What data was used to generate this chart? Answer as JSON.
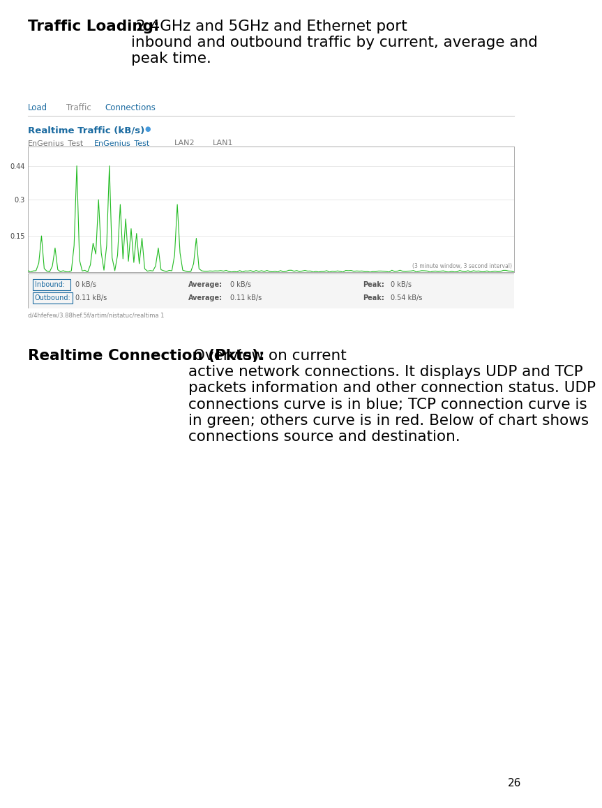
{
  "page_number": "26",
  "background_color": "#ffffff",
  "title_bold": "Traffic Loading:",
  "title_normal": " 2.4GHz and 5GHz and Ethernet port\ninbound and outbound traffic by current, average and\npeak time.",
  "title_fontsize": 15.5,
  "tabs": [
    "Load",
    "Traffic",
    "Connections"
  ],
  "tab_colors": [
    "#1a6aa0",
    "#888888",
    "#1a6aa0"
  ],
  "chart_title": "Realtime Traffic (kB/s)",
  "chart_title_color": "#1a6aa0",
  "chart_subtitle_labels": [
    "EnGenius_Test",
    "EnGenius_Test",
    "LAN2",
    "LAN1"
  ],
  "chart_subtitle_colors": [
    "#777777",
    "#1a6aa0",
    "#777777",
    "#777777"
  ],
  "yticks": [
    0.15,
    0.3,
    0.44
  ],
  "ylim": [
    0,
    0.52
  ],
  "line_color": "#22bb22",
  "inbound_label": "Inbound:",
  "inbound_value": "0 kB/s",
  "outbound_label": "Outbound:",
  "outbound_value": "0.11 kB/s",
  "average_inbound": "0 kB/s",
  "average_outbound": "0.11 kB/s",
  "peak_inbound": "0 kB/s",
  "peak_outbound": "0.54 kB/s",
  "window_note": "(3 minute window, 3 second interval)",
  "url_note": "d/4hfefew/3.88hef.5f/artim/nistatuc/realtima 1",
  "second_bold": "Realtime Connection (Pkts):",
  "second_normal": " Overview on current\nactive network connections. It displays UDP and TCP\npackets information and other connection status. UDP\nconnections curve is in blue; TCP connection curve is\nin green; others curve is in red. Below of chart shows\nconnections source and destination.",
  "second_fontsize": 15.5
}
